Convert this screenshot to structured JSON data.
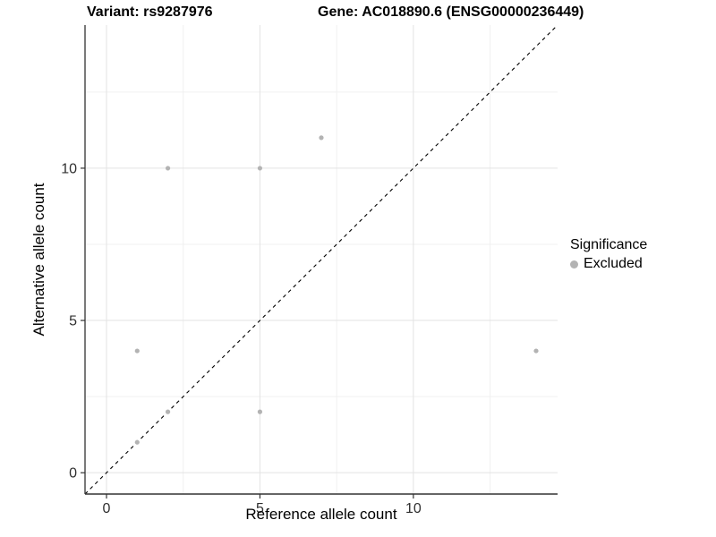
{
  "header": {
    "variant_title": "Variant: rs9287976",
    "gene_title": "Gene: AC018890.6 (ENSG00000236449)"
  },
  "chart_data": {
    "type": "scatter",
    "title": "Variant: rs9287976  |  Gene: AC018890.6 (ENSG00000236449)",
    "xlabel": "Reference allele count",
    "ylabel": "Alternative allele count",
    "xlim": [
      -0.7,
      14.7
    ],
    "ylim": [
      -0.7,
      14.7
    ],
    "x_major_ticks": [
      0,
      5,
      10
    ],
    "y_major_ticks": [
      0,
      5,
      10
    ],
    "x_minor_gridlines": [
      2.5,
      7.5,
      12.5
    ],
    "y_minor_gridlines": [
      2.5,
      7.5,
      12.5
    ],
    "grid": true,
    "reference_line": {
      "type": "identity y=x",
      "style": "dashed",
      "color": "#000000"
    },
    "series": [
      {
        "name": "Excluded",
        "color": "#b3b3b3",
        "points": [
          [
            1,
            1
          ],
          [
            1,
            4
          ],
          [
            2,
            2
          ],
          [
            2,
            10
          ],
          [
            5,
            2
          ],
          [
            5,
            10
          ],
          [
            7,
            11
          ],
          [
            14,
            4
          ]
        ]
      }
    ],
    "legend": {
      "title": "Significance",
      "position": "right",
      "entries": [
        {
          "label": "Excluded",
          "color": "#b3b3b3"
        }
      ]
    }
  },
  "colors": {
    "background": "#ffffff",
    "major_gridline": "#e3e3e3",
    "minor_gridline": "#f0f0f0",
    "axis_line": "#333333",
    "tick_label": "#303030",
    "point": "#b3b3b3",
    "identity_line": "#000000"
  }
}
